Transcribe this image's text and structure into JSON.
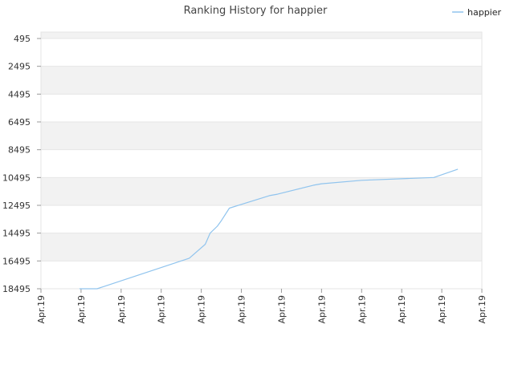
{
  "chart_data": {
    "type": "line",
    "title": "Ranking History for happier",
    "xlabel": "",
    "ylabel": "",
    "y_inverted": true,
    "ylim": [
      495,
      18495
    ],
    "yticks": [
      495,
      2495,
      4495,
      6495,
      8495,
      10495,
      12495,
      14495,
      16495,
      18495
    ],
    "ytick_labels": [
      "495",
      "2495",
      "4495",
      "6495",
      "8495",
      "10495",
      "12495",
      "14495",
      "16495",
      "18495"
    ],
    "xticks": [
      0,
      1,
      2,
      3,
      4,
      5,
      6,
      7,
      8,
      9,
      10,
      11
    ],
    "xtick_labels": [
      "Apr.19",
      "Apr.19",
      "Apr.19",
      "Apr.19",
      "Apr.19",
      "Apr.19",
      "Apr.19",
      "Apr.19",
      "Apr.19",
      "Apr.19",
      "Apr.19",
      "Apr.19"
    ],
    "xlim": [
      0,
      11
    ],
    "grid": true,
    "band_colors": [
      "#f2f2f2",
      "#ffffff"
    ],
    "legend": {
      "position": "top-right",
      "entries": [
        "happier"
      ]
    },
    "series": [
      {
        "name": "happier",
        "color": "#90c4ee",
        "x": [
          0.96,
          1.4,
          3.7,
          4.1,
          4.22,
          4.4,
          4.5,
          4.7,
          5.7,
          5.9,
          6.8,
          7.0,
          8.0,
          9.8,
          10.4
        ],
        "y": [
          18495,
          18495,
          16295,
          15295,
          14495,
          13995,
          13595,
          12695,
          11795,
          11695,
          11045,
          10945,
          10695,
          10495,
          9895
        ]
      }
    ]
  }
}
